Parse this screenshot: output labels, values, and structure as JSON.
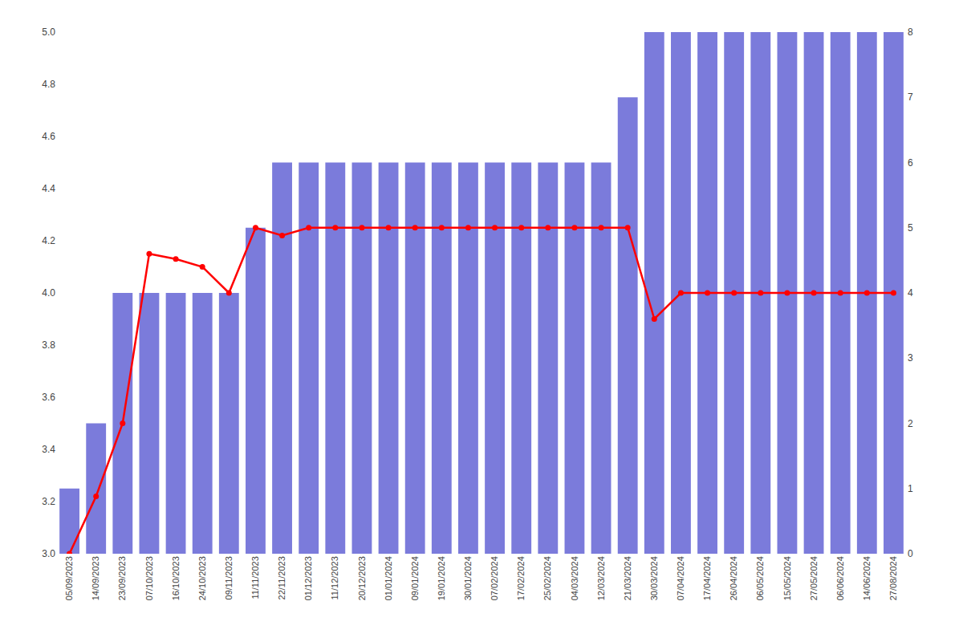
{
  "chart_data": {
    "type": "bar",
    "categories": [
      "05/09/2023",
      "14/09/2023",
      "23/09/2023",
      "07/10/2023",
      "16/10/2023",
      "24/10/2023",
      "09/11/2023",
      "11/11/2023",
      "22/11/2023",
      "01/12/2023",
      "11/12/2023",
      "20/12/2023",
      "01/01/2024",
      "09/01/2024",
      "19/01/2024",
      "30/01/2024",
      "07/02/2024",
      "17/02/2024",
      "25/02/2024",
      "04/03/2024",
      "12/03/2024",
      "21/03/2024",
      "30/03/2024",
      "07/04/2024",
      "17/04/2024",
      "26/04/2024",
      "06/05/2024",
      "15/05/2024",
      "27/05/2024",
      "06/06/2024",
      "14/06/2024",
      "27/08/2024"
    ],
    "series": [
      {
        "type": "bar",
        "color": "#7b7bdb",
        "axis": "y2",
        "values": [
          1,
          2,
          4,
          4,
          4,
          4,
          4,
          5,
          6,
          6,
          6,
          6,
          6,
          6,
          6,
          6,
          6,
          6,
          6,
          6,
          6,
          7,
          8,
          8,
          8,
          8,
          8,
          8,
          8,
          8,
          8,
          8
        ]
      },
      {
        "type": "line",
        "color": "#ff0000",
        "marker": "circle",
        "values": [
          3.0,
          3.22,
          3.5,
          4.15,
          4.13,
          4.1,
          4.0,
          4.25,
          4.22,
          4.25,
          4.25,
          4.25,
          4.25,
          4.25,
          4.25,
          4.25,
          4.25,
          4.25,
          4.25,
          4.25,
          4.25,
          4.25,
          3.9,
          4.0,
          4.0,
          4.0,
          4.0,
          4.0,
          4.0,
          4.0,
          4.0,
          4.0
        ]
      }
    ],
    "ylim": [
      3.0,
      5.0
    ],
    "yticks": [
      {
        "value": 3.0,
        "label": "3.0"
      },
      {
        "value": 3.2,
        "label": "3.2"
      },
      {
        "value": 3.4,
        "label": "3.4"
      },
      {
        "value": 3.6,
        "label": "3.6"
      },
      {
        "value": 3.8,
        "label": "3.8"
      },
      {
        "value": 4.0,
        "label": "4.0"
      },
      {
        "value": 4.2,
        "label": "4.2"
      },
      {
        "value": 4.4,
        "label": "4.4"
      },
      {
        "value": 4.6,
        "label": "4.6"
      },
      {
        "value": 4.8,
        "label": "4.8"
      },
      {
        "value": 5.0,
        "label": "5.0"
      }
    ],
    "y2lim": [
      0,
      8
    ],
    "y2ticks": [
      0,
      1,
      2,
      3,
      4,
      5,
      6,
      7,
      8
    ],
    "grid": false
  }
}
